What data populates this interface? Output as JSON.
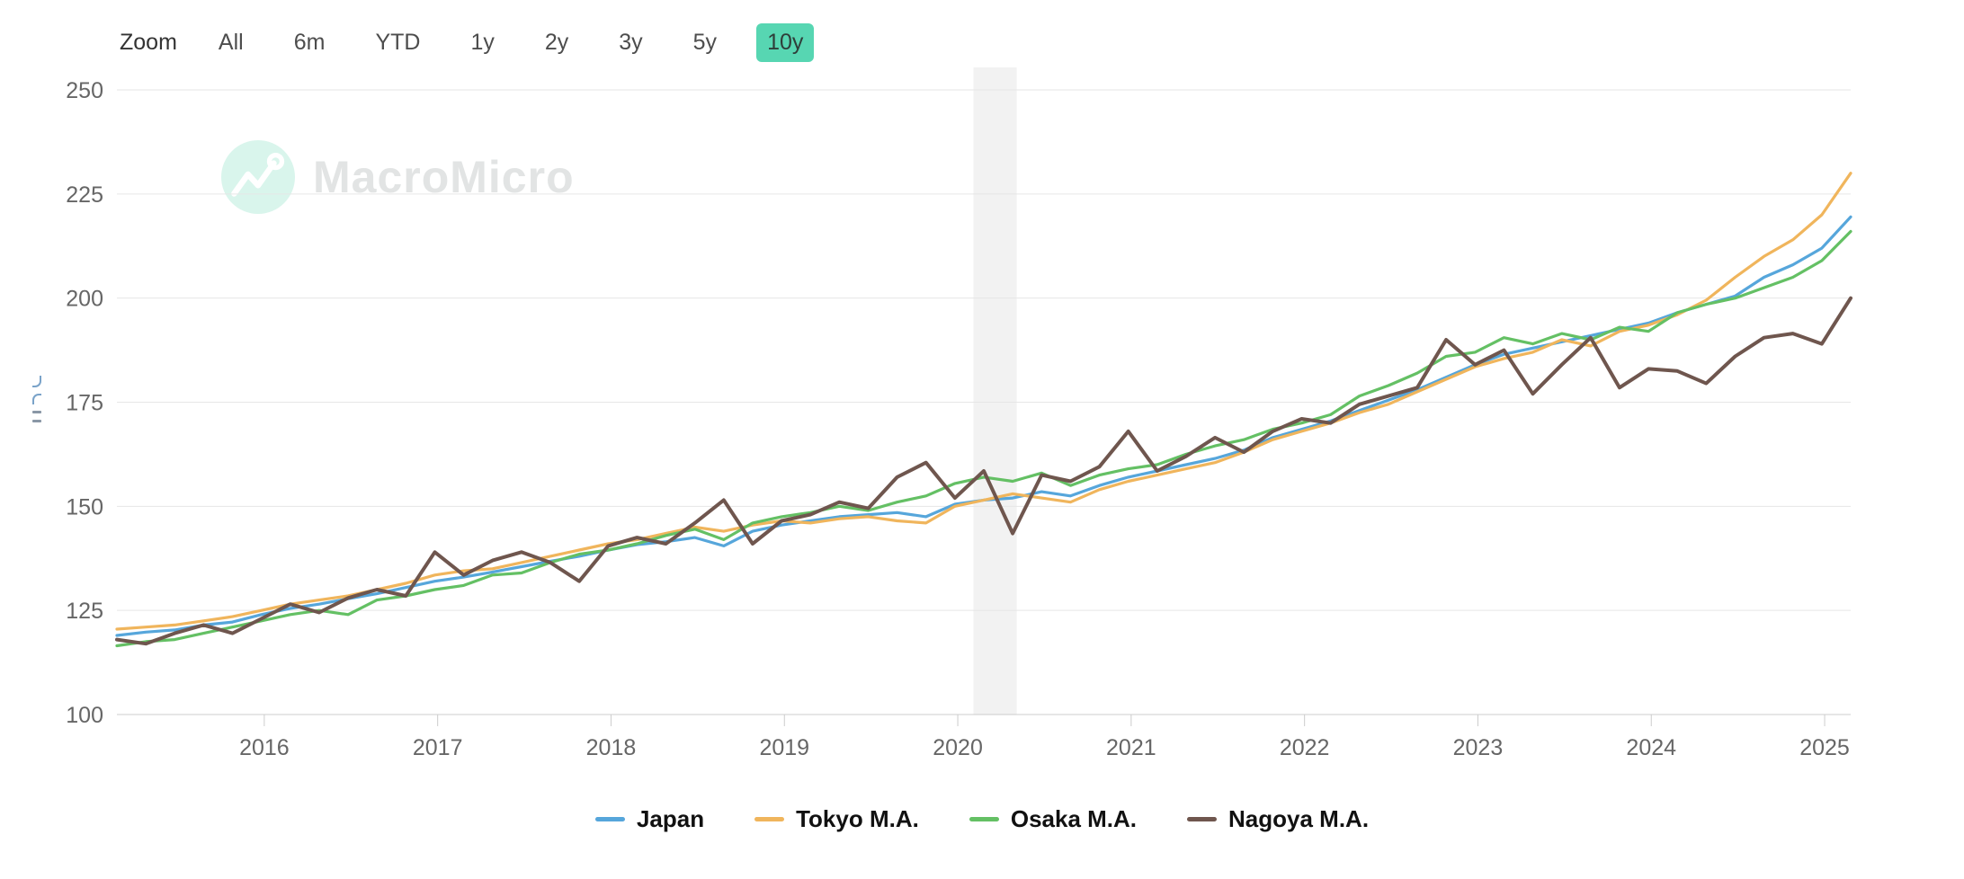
{
  "zoom_controls": {
    "label": "Zoom",
    "buttons": [
      "All",
      "6m",
      "YTD",
      "1y",
      "2y",
      "3y",
      "5y",
      "10y"
    ],
    "active": "10y",
    "active_bg": "#57d6b2",
    "active_text": "#2f3e3a"
  },
  "watermark": {
    "text": "MacroMicro",
    "circle_color": "#d9f5ec",
    "text_color": "#e2e4e4"
  },
  "axis_style": {
    "text_color": "#666666",
    "grid_color": "#e6e6e6",
    "baseline_color": "#cccccc",
    "tick_color": "#cccccc",
    "band_color": "#f2f2f2"
  },
  "chart_data": {
    "type": "line",
    "title": "",
    "xlabel": "",
    "ylabel": "",
    "x_start": 2015.15,
    "x_step_years": 0.16667,
    "x_ticks": [
      2016,
      2017,
      2018,
      2019,
      2020,
      2021,
      2022,
      2023,
      2024,
      2025
    ],
    "ylim": [
      100,
      250
    ],
    "y_ticks": [
      100,
      125,
      150,
      175,
      200,
      225,
      250
    ],
    "grid": true,
    "legend_position": "bottom",
    "recession_band": {
      "from": 2020.09,
      "to": 2020.34
    },
    "series": [
      {
        "name": "Japan",
        "color": "#56a6db",
        "stroke_width": 3.2,
        "values": [
          119.0,
          119.8,
          120.3,
          121.5,
          122.2,
          124.0,
          125.5,
          126.5,
          127.8,
          129.0,
          130.5,
          132.0,
          133.0,
          134.2,
          135.5,
          136.8,
          138.0,
          139.5,
          140.8,
          141.5,
          142.5,
          140.5,
          144.0,
          145.5,
          146.5,
          147.5,
          148.0,
          148.5,
          147.5,
          150.5,
          151.5,
          152.0,
          153.5,
          152.5,
          155.0,
          157.0,
          158.5,
          160.0,
          161.5,
          163.5,
          166.5,
          168.5,
          170.5,
          173.0,
          175.5,
          178.0,
          181.0,
          184.0,
          186.5,
          188.0,
          189.5,
          191.0,
          192.5,
          194.0,
          196.5,
          198.5,
          200.5,
          205.0,
          208.0,
          212.0,
          219.5
        ]
      },
      {
        "name": "Tokyo M.A.",
        "color": "#f0b55c",
        "stroke_width": 3.2,
        "values": [
          120.5,
          121.0,
          121.5,
          122.5,
          123.5,
          125.0,
          126.5,
          127.5,
          128.5,
          130.0,
          131.5,
          133.5,
          134.5,
          135.0,
          136.5,
          138.0,
          139.5,
          141.0,
          142.0,
          143.5,
          145.0,
          144.0,
          145.5,
          146.5,
          146.0,
          147.0,
          147.5,
          146.5,
          146.0,
          150.0,
          151.5,
          153.0,
          152.0,
          151.0,
          154.0,
          156.0,
          157.5,
          159.0,
          160.5,
          163.0,
          166.0,
          168.0,
          170.0,
          172.5,
          174.5,
          177.5,
          180.5,
          183.5,
          185.5,
          187.0,
          190.0,
          188.5,
          192.0,
          193.5,
          196.0,
          199.5,
          205.0,
          210.0,
          214.0,
          220.0,
          230.0
        ]
      },
      {
        "name": "Osaka M.A.",
        "color": "#64c064",
        "stroke_width": 3.2,
        "values": [
          116.5,
          117.5,
          118.0,
          119.5,
          121.0,
          122.5,
          124.0,
          125.0,
          124.0,
          127.5,
          128.5,
          130.0,
          131.0,
          133.5,
          134.0,
          136.5,
          138.5,
          139.5,
          141.0,
          143.0,
          144.5,
          142.0,
          146.0,
          147.5,
          148.5,
          150.0,
          149.0,
          151.0,
          152.5,
          155.5,
          157.0,
          156.0,
          158.0,
          155.0,
          157.5,
          159.0,
          160.0,
          162.5,
          164.5,
          166.0,
          168.5,
          170.0,
          172.0,
          176.5,
          179.0,
          182.0,
          186.0,
          187.0,
          190.5,
          189.0,
          191.5,
          190.0,
          193.0,
          192.0,
          196.5,
          198.5,
          200.0,
          202.5,
          205.0,
          209.0,
          216.0
        ]
      },
      {
        "name": "Nagoya M.A.",
        "color": "#6f564e",
        "stroke_width": 4.0,
        "values": [
          118.0,
          117.0,
          119.5,
          121.5,
          119.5,
          123.0,
          126.5,
          124.5,
          128.0,
          130.0,
          128.5,
          139.0,
          133.5,
          137.0,
          139.0,
          136.5,
          132.0,
          140.5,
          142.5,
          141.0,
          146.0,
          151.5,
          141.0,
          146.5,
          148.0,
          151.0,
          149.5,
          157.0,
          160.5,
          152.0,
          158.5,
          143.5,
          157.5,
          156.0,
          159.5,
          168.0,
          158.5,
          162.0,
          166.5,
          163.0,
          168.0,
          171.0,
          170.0,
          174.5,
          176.5,
          178.5,
          190.0,
          184.0,
          187.5,
          177.0,
          184.0,
          190.5,
          178.5,
          183.0,
          182.5,
          179.5,
          186.0,
          190.5,
          191.5,
          189.0,
          200.0
        ]
      }
    ]
  }
}
